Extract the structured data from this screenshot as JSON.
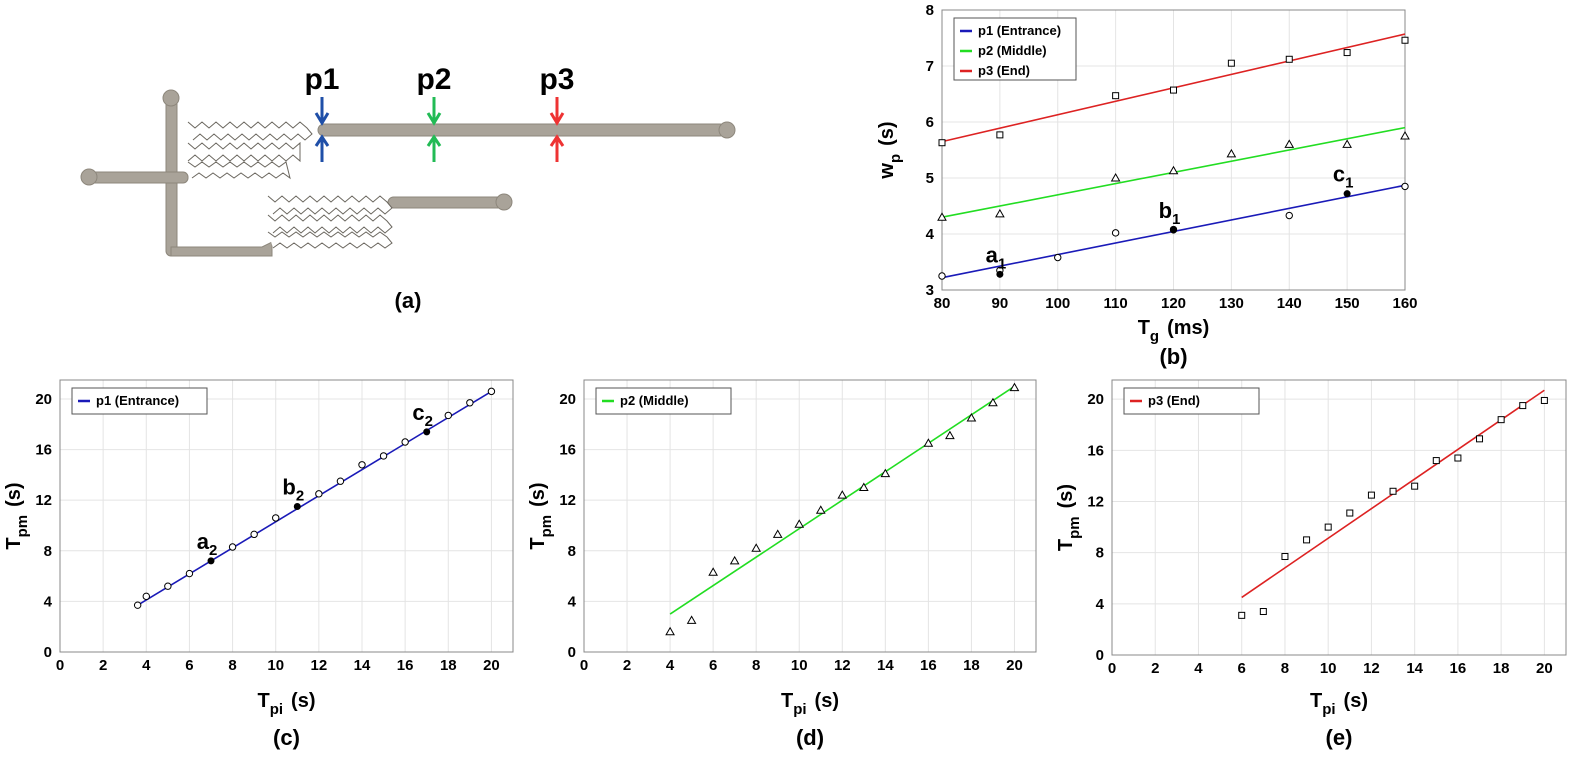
{
  "panel_a": {
    "label": "(a)",
    "probes": [
      {
        "name": "p1",
        "color": "#1f4fa8"
      },
      {
        "name": "p2",
        "color": "#22bb55"
      },
      {
        "name": "p3",
        "color": "#ee3333"
      }
    ]
  },
  "chart_data": [
    {
      "id": "b",
      "type": "scatter",
      "panel_label": "(b)",
      "xlabel": "T",
      "xlabel_sub": "g",
      "xlabel_unit": "(ms)",
      "ylabel": "w",
      "ylabel_sub": "p",
      "ylabel_unit": "(s)",
      "xlim": [
        80,
        160
      ],
      "ylim": [
        3,
        8
      ],
      "xticks": [
        80,
        90,
        100,
        110,
        120,
        130,
        140,
        150,
        160
      ],
      "yticks": [
        3,
        4,
        5,
        6,
        7,
        8
      ],
      "grid": true,
      "legend_position": "top-left",
      "series": [
        {
          "name": "p1",
          "legend": "p1 (Entrance)",
          "color": "#1a1ab8",
          "marker": "circle",
          "x": [
            80,
            90,
            100,
            110,
            120,
            140,
            160
          ],
          "y": [
            3.25,
            3.35,
            3.58,
            4.02,
            4.08,
            4.33,
            4.85
          ],
          "fit": {
            "x": [
              80,
              160
            ],
            "y": [
              3.22,
              4.87
            ]
          }
        },
        {
          "name": "p2",
          "legend": "p2   (Middle)",
          "color": "#22dd22",
          "marker": "triangle",
          "x": [
            80,
            90,
            110,
            120,
            130,
            140,
            150,
            160
          ],
          "y": [
            4.3,
            4.36,
            5.0,
            5.13,
            5.43,
            5.6,
            5.6,
            5.75
          ],
          "fit": {
            "x": [
              80,
              160
            ],
            "y": [
              4.3,
              5.9
            ]
          }
        },
        {
          "name": "p3",
          "legend": "p3      (End)",
          "color": "#dd2222",
          "marker": "square",
          "x": [
            80,
            90,
            110,
            120,
            130,
            140,
            150,
            160
          ],
          "y": [
            5.63,
            5.77,
            6.47,
            6.57,
            7.05,
            7.12,
            7.24,
            7.46
          ],
          "fit": {
            "x": [
              80,
              160
            ],
            "y": [
              5.65,
              7.57
            ]
          }
        }
      ],
      "highlighted": [
        {
          "label": "a",
          "sub": "1",
          "x": 90,
          "y": 3.28
        },
        {
          "label": "b",
          "sub": "1",
          "x": 120,
          "y": 4.07
        },
        {
          "label": "c",
          "sub": "1",
          "x": 150,
          "y": 4.72
        }
      ]
    },
    {
      "id": "c",
      "type": "scatter",
      "panel_label": "(c)",
      "xlabel": "T",
      "xlabel_sub": "pi",
      "xlabel_unit": "(s)",
      "ylabel": "T",
      "ylabel_sub": "pm",
      "ylabel_unit": "(s)",
      "xlim": [
        0,
        21
      ],
      "ylim": [
        0,
        21.5
      ],
      "xticks": [
        0,
        2,
        4,
        6,
        8,
        10,
        12,
        14,
        16,
        18,
        20
      ],
      "yticks": [
        0,
        4,
        8,
        12,
        16,
        20
      ],
      "grid": true,
      "legend_position": "top-left",
      "series": [
        {
          "name": "p1",
          "legend": "p1 (Entrance)",
          "color": "#1a1ab8",
          "marker": "circle",
          "x": [
            3.6,
            4,
            5,
            6,
            8,
            9,
            10,
            12,
            13,
            14,
            15,
            16,
            18,
            19,
            20
          ],
          "y": [
            3.7,
            4.4,
            5.2,
            6.2,
            8.3,
            9.3,
            10.6,
            12.5,
            13.5,
            14.8,
            15.5,
            16.6,
            18.7,
            19.7,
            20.6
          ],
          "fit": {
            "x": [
              3.6,
              20
            ],
            "y": [
              3.7,
              20.6
            ]
          }
        }
      ],
      "highlighted": [
        {
          "label": "a",
          "sub": "2",
          "x": 7,
          "y": 7.2
        },
        {
          "label": "b",
          "sub": "2",
          "x": 11,
          "y": 11.5
        },
        {
          "label": "c",
          "sub": "2",
          "x": 17,
          "y": 17.4
        }
      ]
    },
    {
      "id": "d",
      "type": "scatter",
      "panel_label": "(d)",
      "xlabel": "T",
      "xlabel_sub": "pi",
      "xlabel_unit": "(s)",
      "ylabel": "T",
      "ylabel_sub": "pm",
      "ylabel_unit": "(s)",
      "xlim": [
        0,
        21
      ],
      "ylim": [
        0,
        21.5
      ],
      "xticks": [
        0,
        2,
        4,
        6,
        8,
        10,
        12,
        14,
        16,
        18,
        20
      ],
      "yticks": [
        0,
        4,
        8,
        12,
        16,
        20
      ],
      "grid": true,
      "legend_position": "top-left",
      "series": [
        {
          "name": "p2",
          "legend": "p2 (Middle)",
          "color": "#22dd22",
          "marker": "triangle",
          "x": [
            4,
            5,
            6,
            7,
            8,
            9,
            10,
            11,
            12,
            13,
            14,
            16,
            17,
            18,
            19,
            20
          ],
          "y": [
            1.6,
            2.5,
            6.3,
            7.2,
            8.2,
            9.3,
            10.1,
            11.2,
            12.4,
            13.0,
            14.1,
            16.5,
            17.1,
            18.5,
            19.7,
            20.9
          ],
          "fit": {
            "x": [
              4,
              20
            ],
            "y": [
              3.0,
              21.0
            ]
          }
        }
      ],
      "highlighted": []
    },
    {
      "id": "e",
      "type": "scatter",
      "panel_label": "(e)",
      "xlabel": "T",
      "xlabel_sub": "pi",
      "xlabel_unit": "(s)",
      "ylabel": "T",
      "ylabel_sub": "pm",
      "ylabel_unit": "(s)",
      "xlim": [
        0,
        21
      ],
      "ylim": [
        0,
        21.5
      ],
      "xticks": [
        0,
        2,
        4,
        6,
        8,
        10,
        12,
        14,
        16,
        18,
        20
      ],
      "yticks": [
        0,
        4,
        8,
        12,
        16,
        20
      ],
      "grid": true,
      "legend_position": "top-left",
      "series": [
        {
          "name": "p3",
          "legend": "p3 (End)",
          "color": "#dd2222",
          "marker": "square",
          "x": [
            6,
            7,
            8,
            9,
            10,
            11,
            12,
            13,
            14,
            15,
            16,
            17,
            18,
            19,
            20
          ],
          "y": [
            3.1,
            3.4,
            7.7,
            9.0,
            10.0,
            11.1,
            12.5,
            12.8,
            13.2,
            15.2,
            15.4,
            16.9,
            18.4,
            19.5,
            19.9
          ],
          "fit": {
            "x": [
              6,
              20
            ],
            "y": [
              4.5,
              20.7
            ]
          }
        }
      ],
      "highlighted": []
    }
  ]
}
